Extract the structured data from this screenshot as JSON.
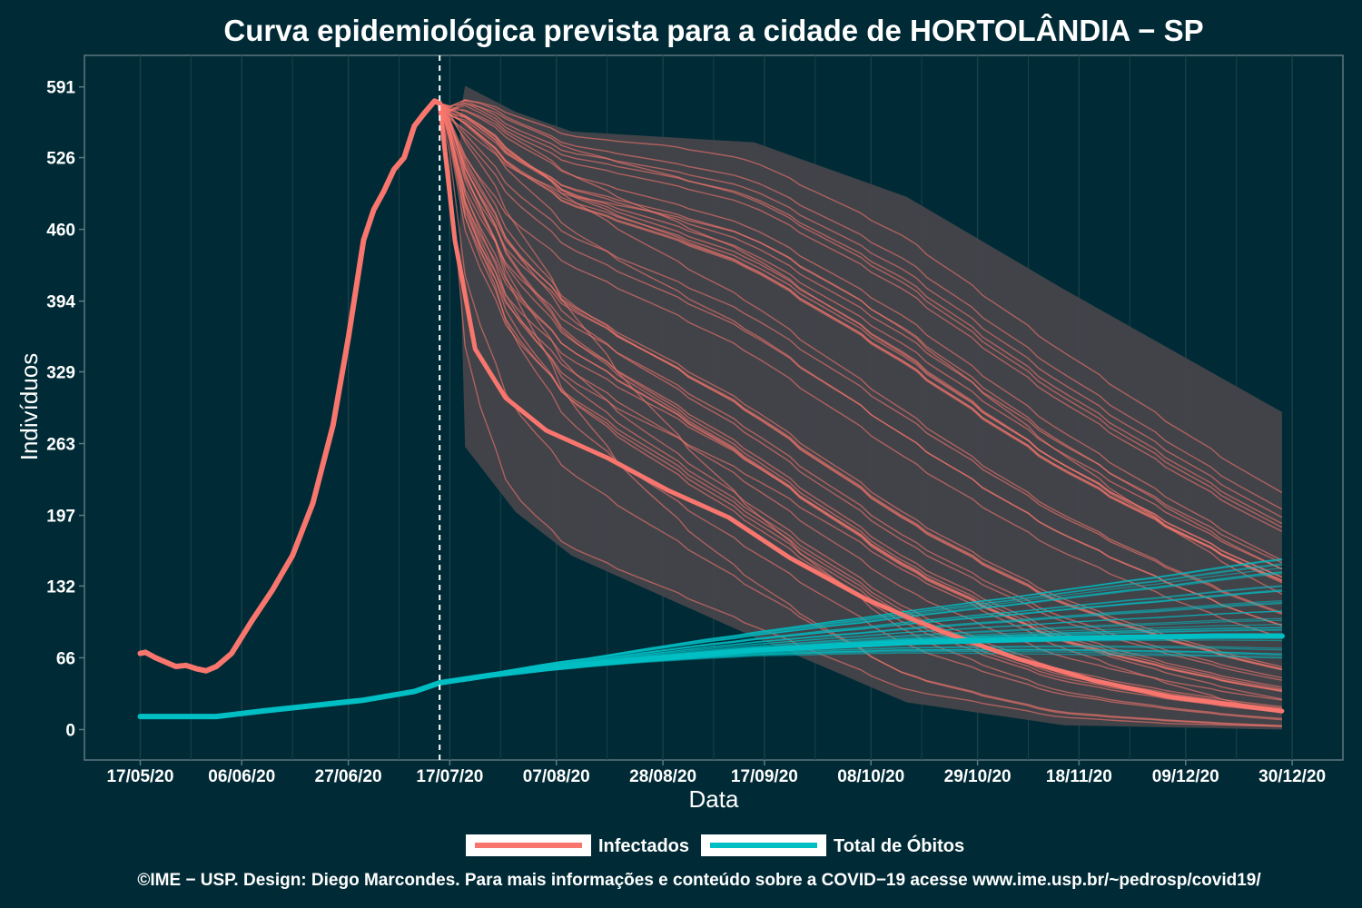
{
  "chart_data": {
    "type": "line",
    "title": "Curva epidemiológica prevista para a cidade de HORTOLÂNDIA − SP",
    "xlabel": "Data",
    "ylabel": "Indivíduos",
    "x_ticks": [
      "17/05/20",
      "06/06/20",
      "27/06/20",
      "17/07/20",
      "07/08/20",
      "28/08/20",
      "17/09/20",
      "08/10/20",
      "29/10/20",
      "18/11/20",
      "09/12/20",
      "30/12/20"
    ],
    "y_ticks": [
      0,
      66,
      132,
      197,
      263,
      329,
      394,
      460,
      526,
      591
    ],
    "ylim": [
      -28,
      620
    ],
    "xlim": [
      "2020-05-06",
      "2021-01-09"
    ],
    "forecast_start": "2020-07-15",
    "grid": true,
    "legend_position": "bottom",
    "colors": {
      "background": "#002b36",
      "infectados": "#f8766d",
      "obitos": "#00bfc4",
      "band": "#45444b",
      "grid": "#1c4048",
      "axis": "#5f7880"
    },
    "series": [
      {
        "name": "Infectados",
        "x": [
          "2020-05-17",
          "2020-05-18",
          "2020-05-20",
          "2020-05-24",
          "2020-05-26",
          "2020-05-28",
          "2020-05-30",
          "2020-06-01",
          "2020-06-04",
          "2020-06-08",
          "2020-06-12",
          "2020-06-16",
          "2020-06-20",
          "2020-06-24",
          "2020-06-27",
          "2020-06-30",
          "2020-07-02",
          "2020-07-04",
          "2020-07-06",
          "2020-07-08",
          "2020-07-10",
          "2020-07-12",
          "2020-07-14",
          "2020-07-15"
        ],
        "values": [
          70,
          71,
          66,
          58,
          59,
          56,
          54,
          58,
          70,
          100,
          128,
          160,
          208,
          280,
          360,
          450,
          478,
          495,
          515,
          526,
          555,
          567,
          578,
          576
        ]
      },
      {
        "name": "Infectados (projeção)",
        "x": [
          "2020-07-15",
          "2020-07-18",
          "2020-07-22",
          "2020-07-28",
          "2020-08-05",
          "2020-08-17",
          "2020-08-29",
          "2020-09-10",
          "2020-09-22",
          "2020-10-07",
          "2020-10-22",
          "2020-11-06",
          "2020-11-21",
          "2020-12-06",
          "2020-12-28"
        ],
        "values": [
          576,
          450,
          350,
          305,
          275,
          250,
          220,
          195,
          158,
          120,
          90,
          65,
          45,
          30,
          17
        ]
      },
      {
        "name": "Total de Óbitos",
        "x": [
          "2020-05-17",
          "2020-06-01",
          "2020-06-10",
          "2020-06-20",
          "2020-06-30",
          "2020-07-10",
          "2020-07-15",
          "2020-07-25",
          "2020-08-05",
          "2020-08-25",
          "2020-09-15",
          "2020-10-15",
          "2020-11-15",
          "2020-12-15",
          "2020-12-28"
        ],
        "values": [
          12,
          12,
          17,
          22,
          27,
          35,
          43,
          50,
          56,
          65,
          73,
          80,
          84,
          86,
          86
        ]
      }
    ],
    "forecast_band": {
      "x": [
        "2020-07-19",
        "2020-07-20",
        "2020-07-30",
        "2020-08-10",
        "2020-09-15",
        "2020-10-15",
        "2020-11-15",
        "2020-12-28"
      ],
      "upper": [
        565,
        592,
        568,
        550,
        540,
        490,
        405,
        292
      ],
      "lower": [
        435,
        260,
        200,
        160,
        85,
        25,
        4,
        0
      ]
    }
  },
  "legend": {
    "infectados_label": "Infectados",
    "obitos_label": "Total de Óbitos"
  },
  "caption": "©IME − USP. Design: Diego Marcondes. Para mais informações e conteúdo sobre a COVID−19 acesse www.ime.usp.br/~pedrosp/covid19/"
}
